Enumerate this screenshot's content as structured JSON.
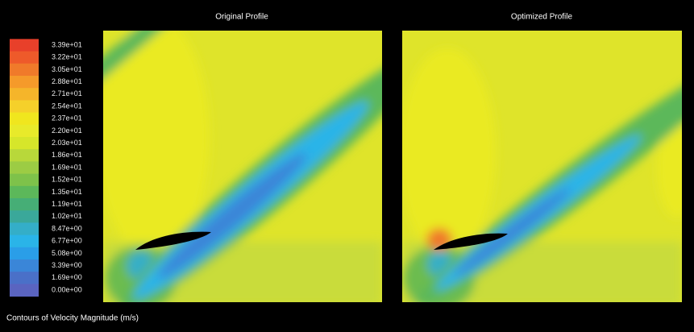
{
  "panels": [
    {
      "title": "Original Profile"
    },
    {
      "title": "Optimized Profile"
    }
  ],
  "colorbar": {
    "labels": [
      "3.39e+01",
      "3.22e+01",
      "3.05e+01",
      "2.88e+01",
      "2.71e+01",
      "2.54e+01",
      "2.37e+01",
      "2.20e+01",
      "2.03e+01",
      "1.86e+01",
      "1.69e+01",
      "1.52e+01",
      "1.35e+01",
      "1.19e+01",
      "1.02e+01",
      "8.47e+00",
      "6.77e+00",
      "5.08e+00",
      "3.39e+00",
      "1.69e+00",
      "0.00e+00"
    ],
    "colors": [
      "#e8402a",
      "#ee5a2a",
      "#f07a2a",
      "#f59a2a",
      "#f5b52a",
      "#f5d02a",
      "#f0e61e",
      "#e8ea2a",
      "#d6e62a",
      "#b8d83a",
      "#9ccc44",
      "#7ec24a",
      "#5cb85a",
      "#46ae76",
      "#3aa89a",
      "#34aec8",
      "#2ab4e8",
      "#2a9ee8",
      "#3a86d8",
      "#4a70c8",
      "#5a64c0"
    ]
  },
  "caption": "Contours of Velocity Magnitude (m/s)"
}
